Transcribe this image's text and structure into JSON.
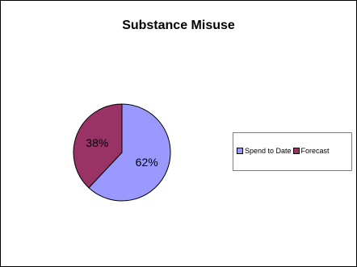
{
  "chart_data": {
    "type": "pie",
    "title": "Substance Misuse",
    "categories": [
      "Spend to Date",
      "Forecast"
    ],
    "values": [
      62,
      38
    ],
    "labels": [
      "62%",
      "38%"
    ],
    "colors": [
      "#9999ff",
      "#993366"
    ],
    "legend_position": "right"
  }
}
